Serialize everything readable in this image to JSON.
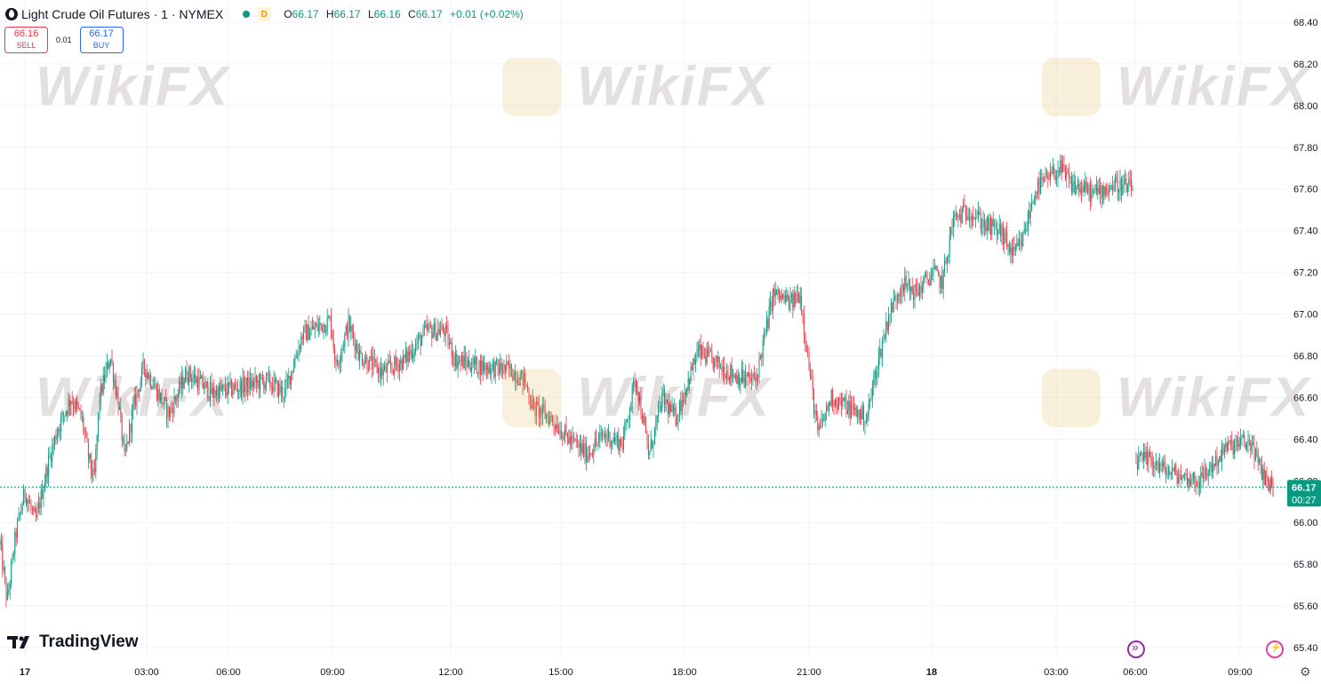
{
  "header": {
    "title": "Light Crude Oil Futures · 1 · NYMEX",
    "status_color": "#089981",
    "delay_badge": "D",
    "delay_badge_color": "#ff9800",
    "ohlc": {
      "open_label": "O",
      "open": "66.17",
      "high_label": "H",
      "high": "66.17",
      "low_label": "L",
      "low": "66.16",
      "close_label": "C",
      "close": "66.17",
      "change": "+0.01 (+0.02%)"
    }
  },
  "trade": {
    "sell_price": "66.16",
    "sell_label": "SELL",
    "spread": "0.01",
    "buy_price": "66.17",
    "buy_label": "BUY"
  },
  "logo": {
    "text": "TradingView"
  },
  "watermark": {
    "text": "WikiFX"
  },
  "price_label": {
    "price": "66.17",
    "countdown": "00:27"
  },
  "chart_data": {
    "type": "candlestick",
    "up_color": "#089981",
    "down_color": "#f23645",
    "y_ticks": [
      68.4,
      68.2,
      68.0,
      67.8,
      67.6,
      67.4,
      67.2,
      67.0,
      66.8,
      66.6,
      66.4,
      66.2,
      66.0,
      65.8,
      65.6,
      65.4
    ],
    "ylim": [
      65.4,
      68.4
    ],
    "x_ticks": [
      "17",
      "03:00",
      "06:00",
      "09:00",
      "12:00",
      "15:00",
      "18:00",
      "21:00",
      "18",
      "03:00",
      "06:00",
      "09:00"
    ],
    "current_price": 66.17,
    "path_segments": [
      [
        [
          0,
          65.9
        ],
        [
          8,
          65.62
        ],
        [
          18,
          65.95
        ],
        [
          28,
          66.15
        ],
        [
          40,
          66.0
        ],
        [
          55,
          66.3
        ],
        [
          65,
          66.45
        ],
        [
          80,
          66.6
        ],
        [
          92,
          66.5
        ],
        [
          100,
          66.3
        ],
        [
          106,
          66.2
        ],
        [
          112,
          66.6
        ],
        [
          124,
          66.8
        ],
        [
          134,
          66.55
        ],
        [
          140,
          66.3
        ],
        [
          150,
          66.55
        ],
        [
          162,
          66.75
        ],
        [
          178,
          66.62
        ],
        [
          190,
          66.52
        ],
        [
          210,
          66.72
        ],
        [
          240,
          66.62
        ],
        [
          270,
          66.65
        ],
        [
          300,
          66.68
        ],
        [
          320,
          66.62
        ],
        [
          340,
          66.9
        ],
        [
          372,
          66.97
        ],
        [
          378,
          66.75
        ],
        [
          392,
          66.95
        ],
        [
          405,
          66.8
        ],
        [
          430,
          66.72
        ],
        [
          455,
          66.78
        ],
        [
          480,
          66.92
        ],
        [
          500,
          66.92
        ],
        [
          512,
          66.78
        ],
        [
          540,
          66.75
        ],
        [
          575,
          66.73
        ],
        [
          590,
          66.68
        ],
        [
          600,
          66.55
        ],
        [
          620,
          66.5
        ],
        [
          640,
          66.4
        ],
        [
          660,
          66.33
        ],
        [
          680,
          66.42
        ],
        [
          700,
          66.38
        ],
        [
          715,
          66.7
        ],
        [
          730,
          66.32
        ],
        [
          745,
          66.6
        ],
        [
          760,
          66.5
        ],
        [
          785,
          66.82
        ],
        [
          810,
          66.75
        ],
        [
          830,
          66.7
        ],
        [
          850,
          66.68
        ],
        [
          870,
          67.1
        ],
        [
          890,
          67.05
        ],
        [
          900,
          67.1
        ],
        [
          910,
          66.75
        ],
        [
          920,
          66.42
        ],
        [
          935,
          66.6
        ],
        [
          955,
          66.55
        ],
        [
          975,
          66.5
        ],
        [
          985,
          66.72
        ],
        [
          1000,
          67.0
        ],
        [
          1015,
          67.15
        ],
        [
          1030,
          67.1
        ],
        [
          1050,
          67.2
        ],
        [
          1060,
          67.15
        ],
        [
          1072,
          67.45
        ],
        [
          1090,
          67.5
        ],
        [
          1110,
          67.42
        ],
        [
          1125,
          67.4
        ],
        [
          1140,
          67.28
        ],
        [
          1150,
          67.35
        ],
        [
          1165,
          67.6
        ],
        [
          1180,
          67.65
        ],
        [
          1192,
          67.7
        ],
        [
          1205,
          67.62
        ],
        [
          1230,
          67.58
        ],
        [
          1255,
          67.62
        ],
        [
          1275,
          67.6
        ]
      ],
      [
        [
          1278,
          66.29
        ],
        [
          1295,
          66.3
        ],
        [
          1310,
          66.25
        ],
        [
          1330,
          66.22
        ],
        [
          1350,
          66.2
        ],
        [
          1365,
          66.28
        ],
        [
          1380,
          66.36
        ],
        [
          1395,
          66.38
        ],
        [
          1408,
          66.38
        ],
        [
          1418,
          66.25
        ],
        [
          1433,
          66.16
        ]
      ]
    ]
  }
}
